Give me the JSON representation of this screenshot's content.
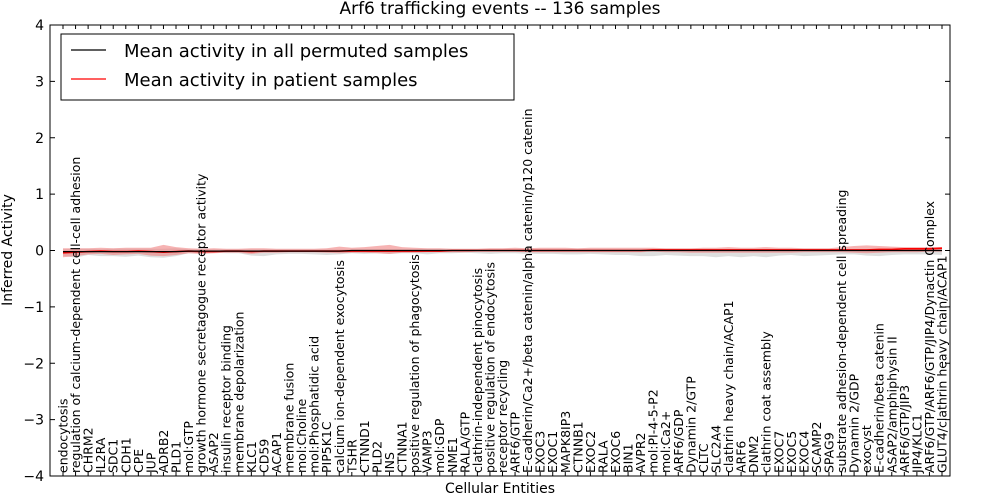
{
  "chart_data": {
    "type": "line",
    "title": "Arf6 trafficking events -- 136 samples",
    "xlabel": "Cellular Entities",
    "ylabel": "Inferred Activity",
    "ylim": [
      -4,
      4
    ],
    "yticks": [
      -4,
      -3,
      -2,
      -1,
      0,
      1,
      2,
      3,
      4
    ],
    "legend": {
      "position": "top-left",
      "entries": [
        {
          "label": "Mean activity in all permuted samples",
          "color": "#000000"
        },
        {
          "label": "Mean activity in patient samples",
          "color": "#ff0000"
        }
      ]
    },
    "colors": {
      "permuted_band": "#c8c8c8",
      "patient_band": "#f08080",
      "patient_line": "#ff0000",
      "permuted_line": "#000000"
    },
    "categories": [
      "endocytosis",
      "regulation of calcium-dependent cell-cell adhesion",
      "CHRM2",
      "IL2RA",
      "SDC1",
      "CDH1",
      "CPE",
      "JUP",
      "ADRB2",
      "PLD1",
      "mol:GTP",
      "growth hormone secretagogue receptor activity",
      "ASAP2",
      "insulin receptor binding",
      "membrane depolarization",
      "KLC1",
      "CD59",
      "ACAP1",
      "membrane fusion",
      "mol:Choline",
      "mol:Phosphatidic acid",
      "PIP5K1C",
      "calcium ion-dependent exocytosis",
      "TSHR",
      "CTNND1",
      "PLD2",
      "INS",
      "CTNNA1",
      "positive regulation of phagocytosis",
      "VAMP3",
      "mol:GDP",
      "NME1",
      "RALA/GTP",
      "clathrin-independent pinocytosis",
      "positive regulation of endocytosis",
      "receptor recycling",
      "ARF6/GTP",
      "E-cadherin/Ca2+/beta catenin/alpha catenin/p120 catenin",
      "EXOC3",
      "EXOC1",
      "MAPK8IP3",
      "CTNNB1",
      "EXOC2",
      "RALA",
      "EXOC6",
      "BIN1",
      "AVPR2",
      "mol:PI-4-5-P2",
      "mol:Ca2+",
      "ARF6/GDP",
      "Dynamin 2/GTP",
      "CLTC",
      "SLC2A4",
      "clathrin heavy chain/ACAP1",
      "ARF6",
      "DNM2",
      "clathrin coat assembly",
      "EXOC7",
      "EXOC5",
      "EXOC4",
      "SCAMP2",
      "SPAG9",
      "substrate adhesion-dependent cell spreading",
      "Dynamin 2/GDP",
      "exocyst",
      "E-cadherin/beta catenin",
      "ASAP2/amphiphysin II",
      "ARF6/GTP/JIP3",
      "JIP4/KLC1",
      "ARF6/GTP/ARF6/GTP/JIP4/Dynactin Complex",
      "GLUT4/clathrin heavy chain/ACAP1"
    ],
    "series": [
      {
        "name": "Mean activity in patient samples",
        "values": [
          -0.04,
          -0.03,
          -0.02,
          -0.01,
          -0.02,
          -0.02,
          -0.01,
          -0.02,
          -0.03,
          -0.02,
          -0.01,
          -0.02,
          -0.02,
          -0.01,
          -0.01,
          -0.02,
          -0.01,
          -0.01,
          -0.01,
          -0.01,
          -0.01,
          -0.01,
          -0.01,
          -0.01,
          -0.01,
          -0.01,
          -0.01,
          -0.01,
          -0.01,
          -0.01,
          -0.01,
          0.0,
          0.0,
          0.0,
          0.0,
          0.0,
          0.0,
          0.0,
          0.0,
          0.0,
          0.0,
          0.0,
          0.0,
          0.0,
          0.0,
          0.0,
          0.0,
          0.01,
          0.01,
          0.01,
          0.01,
          0.01,
          0.01,
          0.01,
          0.01,
          0.01,
          0.01,
          0.01,
          0.01,
          0.01,
          0.01,
          0.01,
          0.01,
          0.01,
          0.01,
          0.02,
          0.02,
          0.03,
          0.03,
          0.03,
          0.04
        ],
        "band": [
          [
            -0.12,
            0.04
          ],
          [
            -0.1,
            0.04
          ],
          [
            -0.07,
            0.04
          ],
          [
            -0.06,
            0.05
          ],
          [
            -0.08,
            0.04
          ],
          [
            -0.07,
            0.05
          ],
          [
            -0.06,
            0.05
          ],
          [
            -0.09,
            0.05
          ],
          [
            -0.1,
            0.1
          ],
          [
            -0.08,
            0.06
          ],
          [
            -0.05,
            0.04
          ],
          [
            -0.06,
            0.03
          ],
          [
            -0.05,
            0.04
          ],
          [
            -0.04,
            0.03
          ],
          [
            -0.04,
            0.03
          ],
          [
            -0.06,
            0.04
          ],
          [
            -0.04,
            0.04
          ],
          [
            -0.04,
            0.03
          ],
          [
            -0.03,
            0.03
          ],
          [
            -0.03,
            0.03
          ],
          [
            -0.03,
            0.03
          ],
          [
            -0.04,
            0.04
          ],
          [
            -0.05,
            0.07
          ],
          [
            -0.04,
            0.05
          ],
          [
            -0.04,
            0.06
          ],
          [
            -0.05,
            0.08
          ],
          [
            -0.06,
            0.1
          ],
          [
            -0.04,
            0.06
          ],
          [
            -0.04,
            0.05
          ],
          [
            -0.03,
            0.04
          ],
          [
            -0.03,
            0.04
          ],
          [
            -0.03,
            0.03
          ],
          [
            -0.03,
            0.03
          ],
          [
            -0.02,
            0.03
          ],
          [
            -0.02,
            0.04
          ],
          [
            -0.02,
            0.04
          ],
          [
            -0.02,
            0.05
          ],
          [
            -0.03,
            0.04
          ],
          [
            -0.03,
            0.05
          ],
          [
            -0.03,
            0.05
          ],
          [
            -0.03,
            0.05
          ],
          [
            -0.03,
            0.04
          ],
          [
            -0.03,
            0.05
          ],
          [
            -0.03,
            0.05
          ],
          [
            -0.03,
            0.05
          ],
          [
            -0.03,
            0.05
          ],
          [
            -0.03,
            0.05
          ],
          [
            -0.02,
            0.05
          ],
          [
            -0.03,
            0.04
          ],
          [
            -0.03,
            0.04
          ],
          [
            -0.04,
            0.04
          ],
          [
            -0.04,
            0.05
          ],
          [
            -0.04,
            0.05
          ],
          [
            -0.04,
            0.06
          ],
          [
            -0.04,
            0.05
          ],
          [
            -0.04,
            0.05
          ],
          [
            -0.04,
            0.06
          ],
          [
            -0.04,
            0.05
          ],
          [
            -0.04,
            0.05
          ],
          [
            -0.03,
            0.04
          ],
          [
            -0.03,
            0.04
          ],
          [
            -0.03,
            0.04
          ],
          [
            -0.03,
            0.06
          ],
          [
            -0.04,
            0.08
          ],
          [
            -0.05,
            0.09
          ],
          [
            -0.04,
            0.08
          ],
          [
            -0.03,
            0.07
          ],
          [
            -0.03,
            0.06
          ],
          [
            -0.03,
            0.06
          ],
          [
            -0.02,
            0.06
          ],
          [
            -0.02,
            0.06
          ]
        ]
      },
      {
        "name": "Mean activity in all permuted samples",
        "values": [
          -0.02,
          -0.02,
          -0.02,
          -0.02,
          -0.02,
          -0.02,
          -0.02,
          -0.02,
          -0.02,
          -0.02,
          -0.01,
          -0.01,
          -0.01,
          -0.01,
          -0.01,
          -0.01,
          -0.01,
          -0.01,
          -0.01,
          -0.01,
          -0.01,
          -0.01,
          -0.01,
          0.0,
          0.0,
          0.0,
          0.0,
          0.0,
          0.0,
          0.0,
          0.0,
          0.0,
          0.0,
          0.0,
          0.0,
          0.0,
          0.0,
          0.0,
          0.0,
          0.0,
          0.0,
          0.0,
          0.0,
          0.0,
          0.0,
          0.0,
          0.0,
          0.0,
          0.0,
          0.0,
          0.0,
          0.0,
          0.0,
          0.0,
          0.0,
          0.0,
          0.0,
          0.0,
          0.0,
          0.0,
          0.0,
          0.0,
          0.0,
          0.0,
          0.0,
          0.0,
          0.0,
          0.0,
          0.0,
          0.0,
          0.0
        ],
        "band": [
          [
            -0.09,
            0.02
          ],
          [
            -0.13,
            0.03
          ],
          [
            -0.08,
            0.03
          ],
          [
            -0.1,
            0.02
          ],
          [
            -0.1,
            0.03
          ],
          [
            -0.11,
            0.03
          ],
          [
            -0.09,
            0.03
          ],
          [
            -0.12,
            0.03
          ],
          [
            -0.13,
            0.03
          ],
          [
            -0.1,
            0.04
          ],
          [
            -0.05,
            0.02
          ],
          [
            -0.05,
            0.02
          ],
          [
            -0.04,
            0.02
          ],
          [
            -0.05,
            0.02
          ],
          [
            -0.05,
            0.02
          ],
          [
            -0.09,
            0.02
          ],
          [
            -0.1,
            0.02
          ],
          [
            -0.07,
            0.02
          ],
          [
            -0.06,
            0.02
          ],
          [
            -0.06,
            0.02
          ],
          [
            -0.07,
            0.02
          ],
          [
            -0.08,
            0.02
          ],
          [
            -0.07,
            0.02
          ],
          [
            -0.05,
            0.02
          ],
          [
            -0.06,
            0.02
          ],
          [
            -0.05,
            0.02
          ],
          [
            -0.06,
            0.02
          ],
          [
            -0.05,
            0.02
          ],
          [
            -0.05,
            0.02
          ],
          [
            -0.07,
            0.02
          ],
          [
            -0.05,
            0.02
          ],
          [
            -0.05,
            0.02
          ],
          [
            -0.04,
            0.02
          ],
          [
            -0.05,
            0.02
          ],
          [
            -0.06,
            0.02
          ],
          [
            -0.05,
            0.02
          ],
          [
            -0.05,
            0.02
          ],
          [
            -0.06,
            0.02
          ],
          [
            -0.06,
            0.02
          ],
          [
            -0.06,
            0.02
          ],
          [
            -0.07,
            0.02
          ],
          [
            -0.07,
            0.02
          ],
          [
            -0.06,
            0.02
          ],
          [
            -0.07,
            0.02
          ],
          [
            -0.08,
            0.02
          ],
          [
            -0.08,
            0.02
          ],
          [
            -0.1,
            0.02
          ],
          [
            -0.1,
            0.02
          ],
          [
            -0.08,
            0.02
          ],
          [
            -0.09,
            0.02
          ],
          [
            -0.1,
            0.02
          ],
          [
            -0.1,
            0.02
          ],
          [
            -0.12,
            0.02
          ],
          [
            -0.1,
            0.02
          ],
          [
            -0.12,
            0.02
          ],
          [
            -0.1,
            0.02
          ],
          [
            -0.12,
            0.02
          ],
          [
            -0.09,
            0.02
          ],
          [
            -0.08,
            0.02
          ],
          [
            -0.1,
            0.02
          ],
          [
            -0.09,
            0.02
          ],
          [
            -0.08,
            0.02
          ],
          [
            -0.07,
            0.02
          ],
          [
            -0.07,
            0.02
          ],
          [
            -0.09,
            0.02
          ],
          [
            -0.1,
            0.02
          ],
          [
            -0.08,
            0.02
          ],
          [
            -0.07,
            0.02
          ],
          [
            -0.07,
            0.02
          ],
          [
            -0.07,
            0.02
          ],
          [
            -0.08,
            0.02
          ]
        ]
      }
    ]
  }
}
